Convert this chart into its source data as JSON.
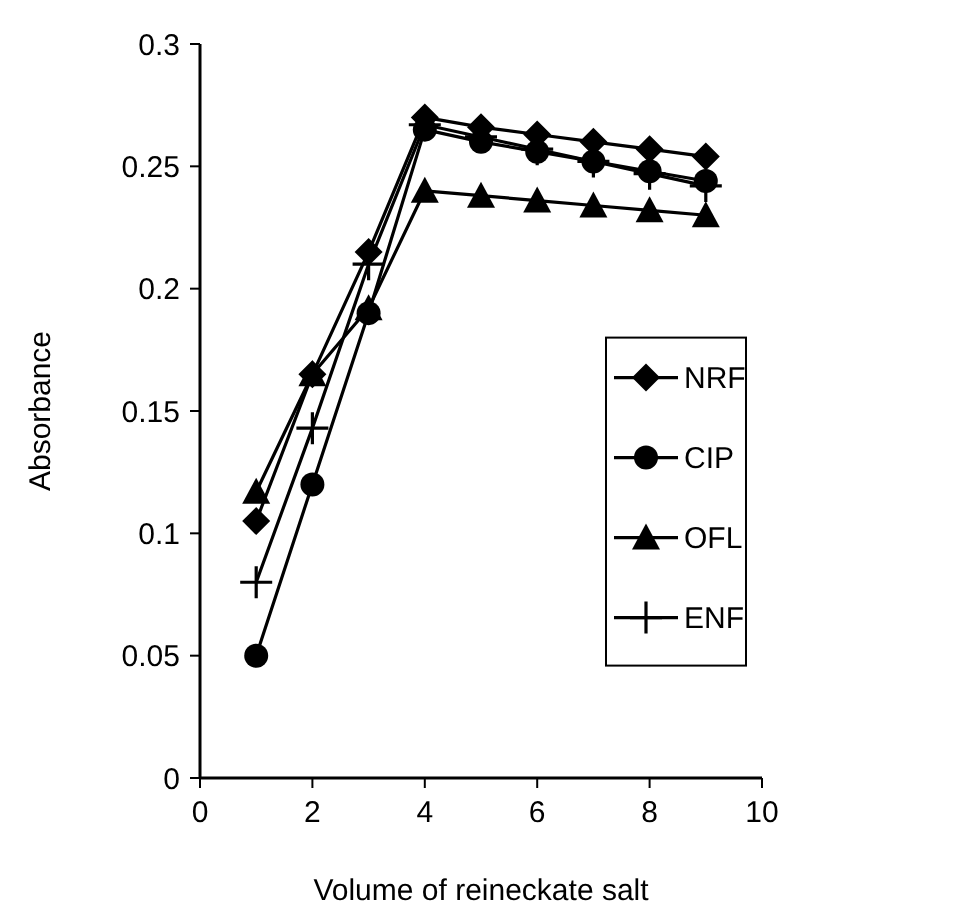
{
  "chart_data": {
    "type": "line",
    "xlabel": "Volume of reineckate salt",
    "ylabel": "Absorbance",
    "x": [
      1,
      2,
      3,
      4,
      5,
      6,
      7,
      8,
      9
    ],
    "xlim": [
      0,
      10
    ],
    "xticks": [
      0,
      2,
      4,
      6,
      8,
      10
    ],
    "ylim": [
      0,
      0.3
    ],
    "yticks": [
      0,
      0.05,
      0.1,
      0.15,
      0.2,
      0.25,
      0.3
    ],
    "grid": false,
    "legend": "right",
    "line_style": "solid",
    "series": [
      {
        "name": "NRF",
        "color": "#000000",
        "marker": "diamond",
        "values": [
          0.105,
          0.165,
          0.215,
          0.27,
          0.266,
          0.263,
          0.26,
          0.257,
          0.254
        ]
      },
      {
        "name": "CIP",
        "color": "#000000",
        "marker": "circle",
        "values": [
          0.05,
          0.12,
          0.19,
          0.265,
          0.26,
          0.256,
          0.252,
          0.248,
          0.244
        ]
      },
      {
        "name": "OFL",
        "color": "#000000",
        "marker": "triangle",
        "values": [
          0.117,
          0.165,
          0.192,
          0.24,
          0.238,
          0.236,
          0.234,
          0.232,
          0.23
        ]
      },
      {
        "name": "ENF",
        "color": "#000000",
        "marker": "cross",
        "values": [
          0.08,
          0.143,
          0.21,
          0.267,
          0.262,
          0.257,
          0.252,
          0.247,
          0.242
        ]
      }
    ]
  }
}
